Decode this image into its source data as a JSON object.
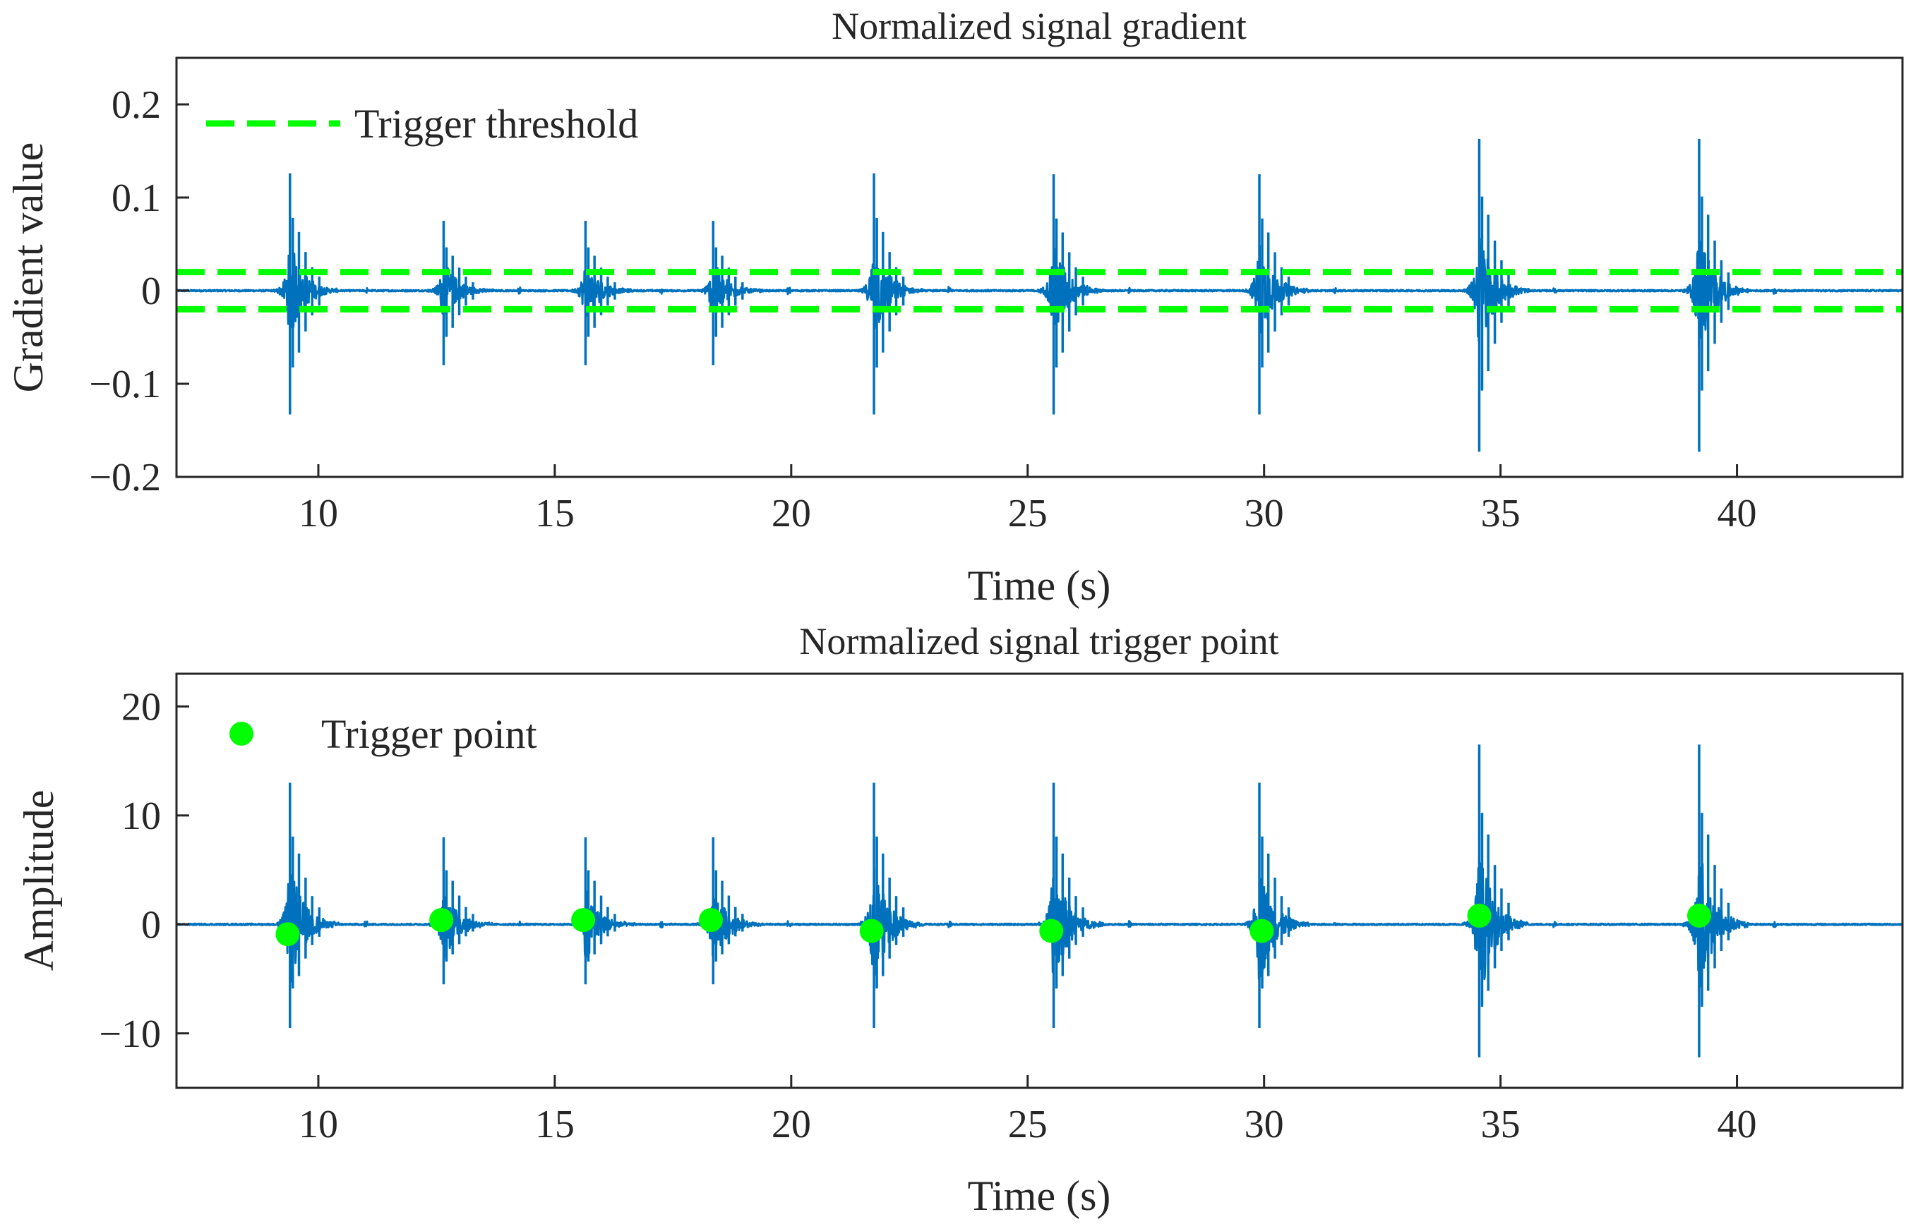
{
  "colors": {
    "signal": "#0072BD",
    "threshold": "#00FF00",
    "marker": "#00FF00",
    "axis": "#262626"
  },
  "chart_data": [
    {
      "type": "line",
      "title": "Normalized signal gradient",
      "xlabel": "Time (s)",
      "ylabel": "Gradient value",
      "xlim": [
        7,
        43.5
      ],
      "ylim": [
        -0.2,
        0.25
      ],
      "xticks": [
        10,
        15,
        20,
        25,
        30,
        35,
        40
      ],
      "xtick_labels": [
        "10",
        "15",
        "20",
        "25",
        "30",
        "35",
        "40"
      ],
      "yticks": [
        -0.2,
        -0.1,
        0,
        0.1,
        0.2
      ],
      "ytick_labels": [
        "−0.2",
        "−0.1",
        "0",
        "0.1",
        "0.2"
      ],
      "legend": {
        "label": "Trigger threshold",
        "location": "top-left"
      },
      "threshold": [
        0.02,
        -0.02
      ],
      "bursts": [
        {
          "t": 9.4,
          "peak_pos": 0.126,
          "peak_neg": -0.133
        },
        {
          "t": 12.65,
          "peak_pos": 0.075,
          "peak_neg": -0.08
        },
        {
          "t": 15.65,
          "peak_pos": 0.075,
          "peak_neg": -0.08
        },
        {
          "t": 18.35,
          "peak_pos": 0.075,
          "peak_neg": -0.08
        },
        {
          "t": 21.75,
          "peak_pos": 0.126,
          "peak_neg": -0.133
        },
        {
          "t": 25.55,
          "peak_pos": 0.125,
          "peak_neg": -0.133
        },
        {
          "t": 29.9,
          "peak_pos": 0.125,
          "peak_neg": -0.133
        },
        {
          "t": 34.55,
          "peak_pos": 0.163,
          "peak_neg": -0.173
        },
        {
          "t": 39.2,
          "peak_pos": 0.163,
          "peak_neg": -0.173
        }
      ]
    },
    {
      "type": "line",
      "title": "Normalized signal trigger point",
      "xlabel": "Time (s)",
      "ylabel": "Amplitude",
      "xlim": [
        7,
        43.5
      ],
      "ylim": [
        -15,
        23
      ],
      "xticks": [
        10,
        15,
        20,
        25,
        30,
        35,
        40
      ],
      "xtick_labels": [
        "10",
        "15",
        "20",
        "25",
        "30",
        "35",
        "40"
      ],
      "yticks": [
        -10,
        0,
        10,
        20
      ],
      "ytick_labels": [
        "−10",
        "0",
        "10",
        "20"
      ],
      "legend": {
        "label": "Trigger point",
        "location": "top-left"
      },
      "bursts": [
        {
          "t": 9.4,
          "peak_pos": 13,
          "peak_neg": -9.5
        },
        {
          "t": 12.65,
          "peak_pos": 8,
          "peak_neg": -5.5
        },
        {
          "t": 15.65,
          "peak_pos": 8,
          "peak_neg": -5.5
        },
        {
          "t": 18.35,
          "peak_pos": 8,
          "peak_neg": -5.5
        },
        {
          "t": 21.75,
          "peak_pos": 13,
          "peak_neg": -9.5
        },
        {
          "t": 25.55,
          "peak_pos": 13,
          "peak_neg": -9.5
        },
        {
          "t": 29.9,
          "peak_pos": 13,
          "peak_neg": -9.5
        },
        {
          "t": 34.55,
          "peak_pos": 16.5,
          "peak_neg": -12.2
        },
        {
          "t": 39.2,
          "peak_pos": 16.5,
          "peak_neg": -12.2
        }
      ],
      "trigger_points": [
        {
          "t": 9.35,
          "y": -0.9
        },
        {
          "t": 12.6,
          "y": 0.4
        },
        {
          "t": 15.6,
          "y": 0.4
        },
        {
          "t": 18.3,
          "y": 0.4
        },
        {
          "t": 21.7,
          "y": -0.6
        },
        {
          "t": 25.5,
          "y": -0.6
        },
        {
          "t": 29.95,
          "y": -0.6
        },
        {
          "t": 34.55,
          "y": 0.8
        },
        {
          "t": 39.2,
          "y": 0.8
        }
      ]
    }
  ]
}
